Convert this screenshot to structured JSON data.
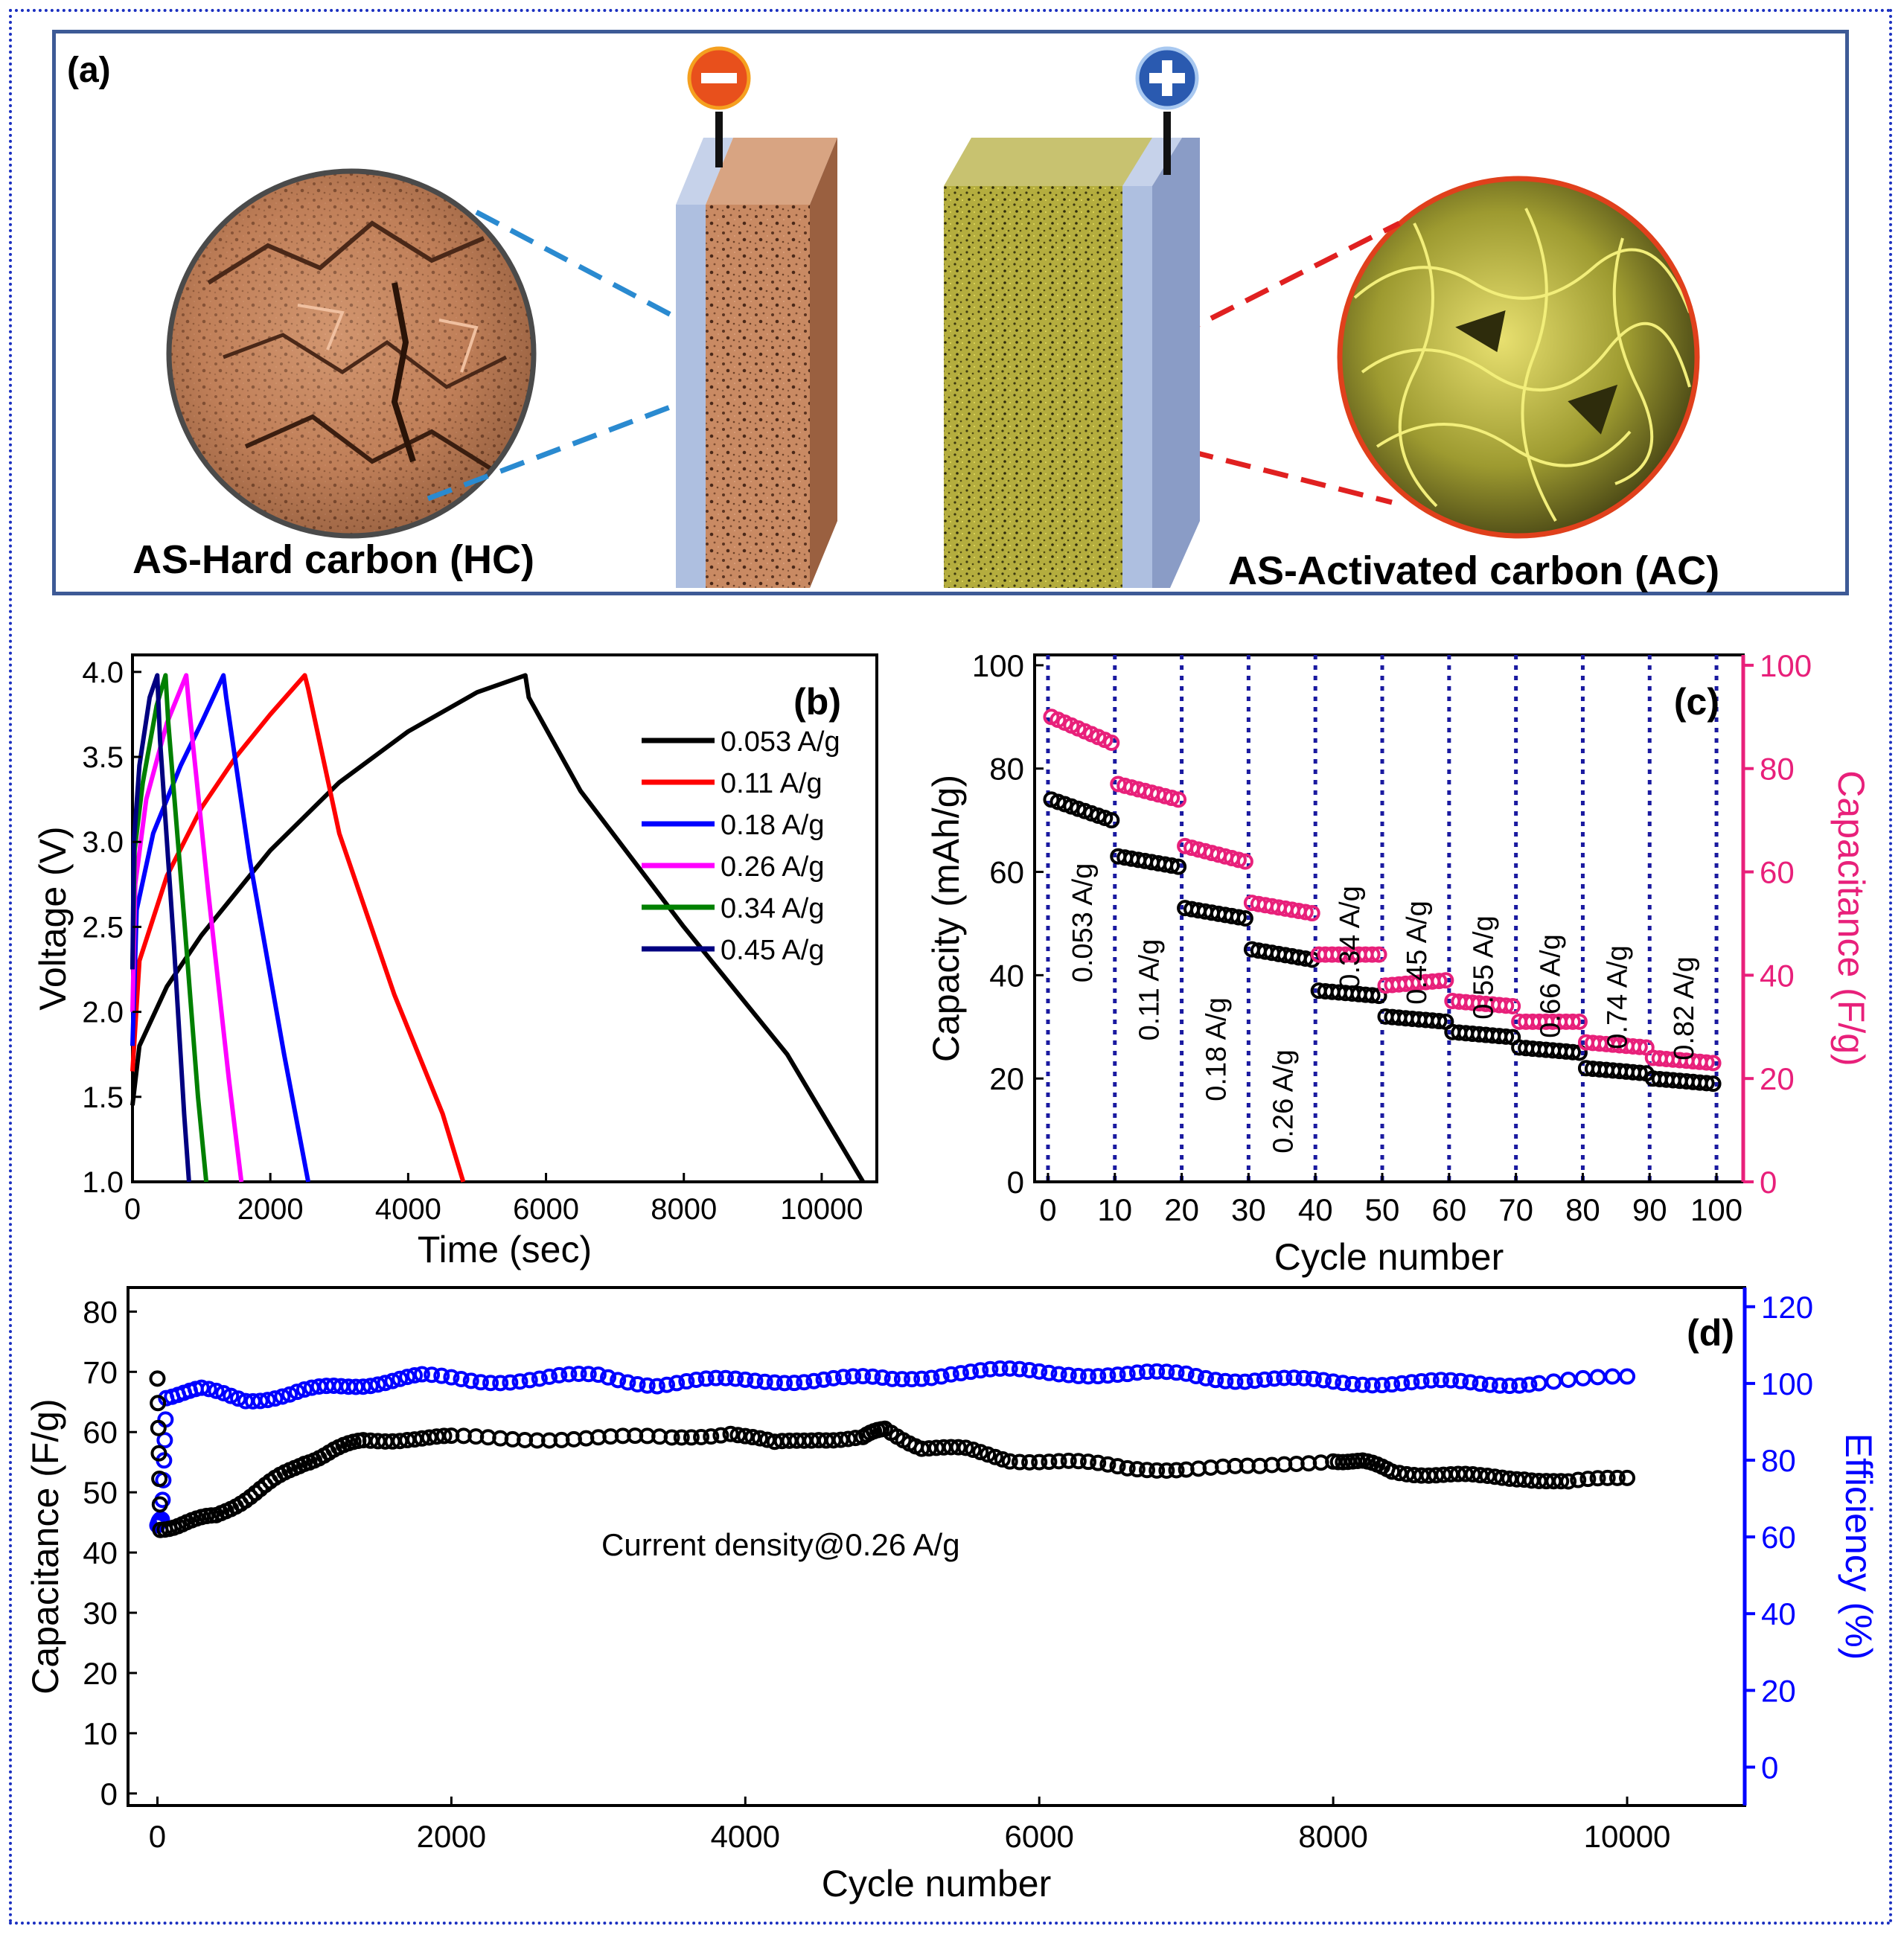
{
  "panel_a": {
    "label": "(a)",
    "left_caption": "AS-Hard carbon (HC)",
    "right_caption": "AS-Activated carbon (AC)",
    "minus_symbol": "−",
    "plus_symbol": "+",
    "colors": {
      "hc": "#c98a63",
      "ac": "#b4ad3e",
      "collector": "#aebfe0",
      "blue_line": "#2a8ad0",
      "red_line": "#e02020"
    }
  },
  "chart_data": [
    {
      "id": "b",
      "label": "(b)",
      "type": "line",
      "xlabel": "Time (sec)",
      "ylabel": "Voltage (V)",
      "xlim": [
        0,
        10800
      ],
      "ylim": [
        1.0,
        4.1
      ],
      "xticks": [
        "0",
        "2000",
        "4000",
        "6000",
        "8000",
        "10000"
      ],
      "xtick_values": [
        0,
        2000,
        4000,
        6000,
        8000,
        10000
      ],
      "yticks": [
        "1.0",
        "1.5",
        "2.0",
        "2.5",
        "3.0",
        "3.5",
        "4.0"
      ],
      "ytick_values": [
        1.0,
        1.5,
        2.0,
        2.5,
        3.0,
        3.5,
        4.0
      ],
      "series": [
        {
          "name": "0.053 A/g",
          "color": "#000000",
          "x": [
            0,
            100,
            500,
            1000,
            2000,
            3000,
            4000,
            5000,
            5700,
            5750,
            6500,
            8000,
            9500,
            10600
          ],
          "y": [
            1.45,
            1.8,
            2.15,
            2.45,
            2.95,
            3.35,
            3.65,
            3.88,
            3.98,
            3.85,
            3.3,
            2.5,
            1.75,
            1.0
          ]
        },
        {
          "name": "0.11 A/g",
          "color": "#ff0000",
          "x": [
            0,
            100,
            500,
            1000,
            1500,
            2000,
            2500,
            2550,
            3000,
            3800,
            4500,
            4800
          ],
          "y": [
            1.65,
            2.3,
            2.8,
            3.2,
            3.5,
            3.75,
            3.98,
            3.9,
            3.05,
            2.1,
            1.4,
            1.0
          ]
        },
        {
          "name": "0.18 A/g",
          "color": "#0000ff",
          "x": [
            0,
            60,
            300,
            700,
            1000,
            1320,
            1360,
            1700,
            2200,
            2550
          ],
          "y": [
            1.8,
            2.6,
            3.05,
            3.45,
            3.7,
            3.98,
            3.85,
            2.9,
            1.75,
            1.0
          ]
        },
        {
          "name": "0.26 A/g",
          "color": "#ff00ff",
          "x": [
            0,
            40,
            200,
            500,
            780,
            820,
            1100,
            1400,
            1580
          ],
          "y": [
            2.0,
            2.75,
            3.25,
            3.7,
            3.98,
            3.8,
            2.7,
            1.6,
            1.0
          ]
        },
        {
          "name": "0.34 A/g",
          "color": "#008000",
          "x": [
            0,
            30,
            150,
            350,
            480,
            520,
            750,
            950,
            1070
          ],
          "y": [
            2.25,
            2.95,
            3.35,
            3.8,
            3.98,
            3.7,
            2.55,
            1.5,
            1.0
          ]
        },
        {
          "name": "0.45 A/g",
          "color": "#000080",
          "x": [
            0,
            20,
            100,
            250,
            360,
            400,
            600,
            750,
            820
          ],
          "y": [
            2.25,
            3.0,
            3.45,
            3.85,
            3.98,
            3.6,
            2.4,
            1.4,
            1.0
          ]
        }
      ]
    },
    {
      "id": "c",
      "label": "(c)",
      "type": "scatter",
      "xlabel": "Cycle number",
      "ylabel": "Capacity (mAh/g)",
      "ylabel_right": "Capacitance (F/g)",
      "xlim": [
        -2,
        104
      ],
      "ylim": [
        0,
        102
      ],
      "ylim_right": [
        0,
        102
      ],
      "xticks": [
        "0",
        "10",
        "20",
        "30",
        "40",
        "50",
        "60",
        "70",
        "80",
        "90",
        "100"
      ],
      "xtick_values": [
        0,
        10,
        20,
        30,
        40,
        50,
        60,
        70,
        80,
        90,
        100
      ],
      "yticks": [
        "0",
        "20",
        "40",
        "60",
        "80",
        "100"
      ],
      "ytick_values": [
        0,
        20,
        40,
        60,
        80,
        100
      ],
      "yticks_right": [
        "0",
        "20",
        "40",
        "60",
        "80",
        "100"
      ],
      "ytick_values_right": [
        0,
        20,
        40,
        60,
        80,
        100
      ],
      "segment_labels": [
        "0.053 A/g",
        "0.11 A/g",
        "0.18 A/g",
        "0.26 A/g",
        "0.34 A/g",
        "0.45 A/g",
        "0.55 A/g",
        "0.66 A/g",
        "0.74 A/g",
        "0.82 A/g"
      ],
      "capacity_start": [
        74,
        63,
        53,
        45,
        37,
        32,
        29,
        26,
        22,
        20
      ],
      "capacity_end": [
        70,
        61,
        51,
        43,
        36,
        31,
        28,
        25,
        21,
        19
      ],
      "capacitance_start": [
        90,
        77,
        65,
        54,
        44,
        38,
        35,
        31,
        27,
        24
      ],
      "capacitance_end": [
        85,
        74,
        62,
        52,
        44,
        39,
        34,
        31,
        26,
        23
      ],
      "capacity_color": "#000000",
      "capacitance_color": "#e8207a",
      "divider_color": "#1a1aa0"
    },
    {
      "id": "d",
      "label": "(d)",
      "type": "scatter",
      "xlabel": "Cycle number",
      "ylabel": "Capacitance (F/g)",
      "ylabel_right": "Efficiency (%)",
      "annotation": "Current density@0.26 A/g",
      "xlim": [
        -200,
        10800
      ],
      "ylim": [
        -2,
        84
      ],
      "ylim_right": [
        -10,
        125
      ],
      "xticks": [
        "0",
        "2000",
        "4000",
        "6000",
        "8000",
        "10000"
      ],
      "xtick_values": [
        0,
        2000,
        4000,
        6000,
        8000,
        10000
      ],
      "yticks": [
        "0",
        "10",
        "20",
        "30",
        "40",
        "50",
        "60",
        "70",
        "80"
      ],
      "ytick_values": [
        0,
        10,
        20,
        30,
        40,
        50,
        60,
        70,
        80
      ],
      "yticks_right": [
        "0",
        "20",
        "40",
        "60",
        "80",
        "100",
        "120"
      ],
      "ytick_values_right": [
        0,
        20,
        40,
        60,
        80,
        100,
        120
      ],
      "capacitance": {
        "color": "#000000",
        "x": [
          0,
          20,
          200,
          400,
          600,
          800,
          1000,
          1200,
          1400,
          1700,
          2000,
          2500,
          3000,
          3500,
          3900,
          4200,
          4500,
          4800,
          4950,
          5200,
          5500,
          5800,
          6200,
          6600,
          7000,
          7500,
          8000,
          8200,
          8400,
          8700,
          9000,
          9300,
          9600,
          10000
        ],
        "y": [
          68.5,
          44,
          45,
          46,
          49,
          52,
          55,
          57,
          58.5,
          59,
          59,
          59,
          59,
          59,
          60,
          58,
          59,
          59,
          60.5,
          57.5,
          57,
          55.5,
          55,
          54,
          54,
          54,
          55.5,
          55,
          53.5,
          53,
          52.5,
          52.5,
          51.5,
          52.5
        ]
      },
      "efficiency": {
        "color": "#0000ff",
        "x": [
          0,
          30,
          60,
          300,
          600,
          900,
          1200,
          1500,
          1800,
          2200,
          2600,
          3000,
          3400,
          3800,
          4200,
          4600,
          5000,
          5400,
          5800,
          6200,
          6600,
          7000,
          7400,
          7800,
          8200,
          8600,
          9000,
          9400,
          10000
        ],
        "y": [
          63,
          64,
          97,
          98,
          96,
          97,
          99,
          100.5,
          101.5,
          101,
          101,
          102,
          100,
          100.5,
          101,
          101,
          101,
          103,
          103,
          103,
          102,
          102.5,
          101,
          100.5,
          100.5,
          100,
          100,
          100.5,
          101
        ]
      }
    }
  ]
}
